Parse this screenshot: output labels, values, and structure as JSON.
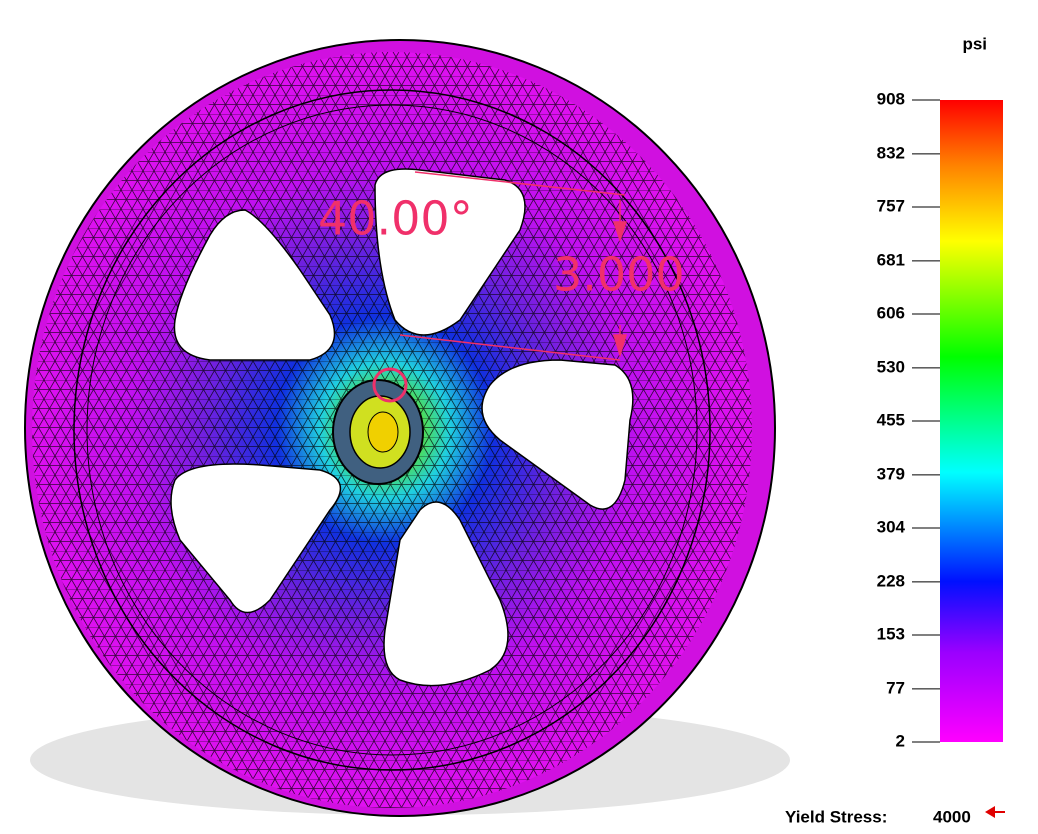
{
  "legend": {
    "unit": "psi",
    "ticks": [
      908,
      832,
      757,
      681,
      606,
      530,
      455,
      379,
      304,
      228,
      153,
      77,
      2
    ]
  },
  "yield": {
    "label": "Yield Stress:",
    "value": 4000
  },
  "annotations": {
    "angle": "40.00°",
    "length": "3.000"
  }
}
